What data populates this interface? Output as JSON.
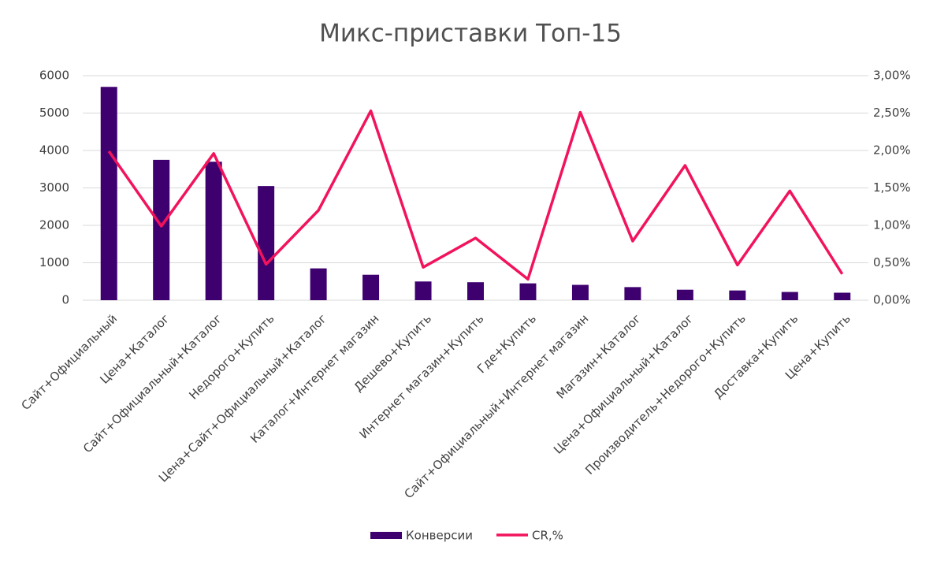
{
  "chart_data": {
    "type": "bar-line",
    "title": "Микс-приставки Топ-15",
    "categories": [
      "Сайт+Официальный",
      "Цена+Каталог",
      "Сайт+Официальный+Каталог",
      "Недорого+Купить",
      "Цена+Сайт+Официальный+Каталог",
      "Каталог+Интернет магазин",
      "Дешево+Купить",
      "Интернет магазин+Купить",
      "Где+Купить",
      "Сайт+Официальный+Интернет магазин",
      "Магазин+Каталог",
      "Цена+Официальный+Каталог",
      "Производитель+Недорого+Купить",
      "Доставка+Купить",
      "Цена+Купить"
    ],
    "series": [
      {
        "name": "Конверсии",
        "type": "bar",
        "color": "#3f006f",
        "values": [
          5700,
          3750,
          3700,
          3050,
          850,
          680,
          500,
          480,
          450,
          410,
          350,
          280,
          260,
          220,
          200
        ]
      },
      {
        "name": "CR,%",
        "type": "line",
        "axis": "y2",
        "color": "#f2135c",
        "values": [
          1.99,
          0.99,
          1.96,
          0.48,
          1.2,
          2.53,
          0.44,
          0.83,
          0.28,
          2.51,
          0.79,
          1.8,
          0.47,
          1.46,
          0.35
        ]
      }
    ],
    "ylim": [
      0,
      6000
    ],
    "yticks": [
      0,
      1000,
      2000,
      3000,
      4000,
      5000,
      6000
    ],
    "y2lim": [
      0,
      3
    ],
    "y2ticks": [
      {
        "value": 0,
        "label": "0,00%"
      },
      {
        "value": 0.5,
        "label": "0,50%"
      },
      {
        "value": 1,
        "label": "1,00%"
      },
      {
        "value": 1.5,
        "label": "1,50%"
      },
      {
        "value": 2,
        "label": "2,00%"
      },
      {
        "value": 2.5,
        "label": "2,50%"
      },
      {
        "value": 3,
        "label": "3,00%"
      }
    ],
    "grid": true,
    "legend": "bottom"
  }
}
